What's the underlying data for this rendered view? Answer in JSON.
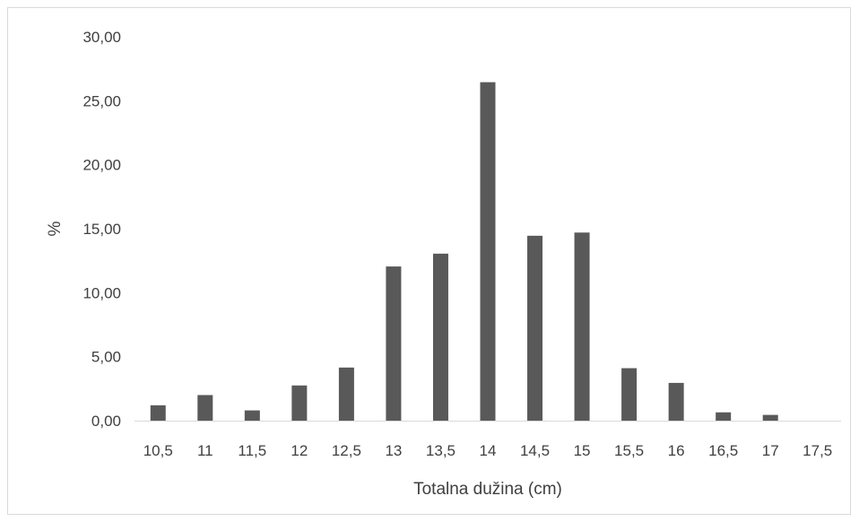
{
  "chart_data": {
    "type": "bar",
    "title": "",
    "xlabel": "Totalna dužina (cm)",
    "ylabel": "%",
    "ylim": [
      0,
      30
    ],
    "yticks": [
      "0,00",
      "5,00",
      "10,00",
      "15,00",
      "20,00",
      "25,00",
      "30,00"
    ],
    "categories": [
      "10,5",
      "11",
      "11,5",
      "12",
      "12,5",
      "13",
      "13,5",
      "14",
      "14,5",
      "15",
      "15,5",
      "16",
      "16,5",
      "17",
      "17,5"
    ],
    "values": [
      1.2,
      2.0,
      0.8,
      2.75,
      4.15,
      12.05,
      13.05,
      26.45,
      14.45,
      14.7,
      4.1,
      2.95,
      0.65,
      0.45,
      0
    ],
    "grid": false,
    "legend": "none",
    "bar_color": "#595959"
  }
}
